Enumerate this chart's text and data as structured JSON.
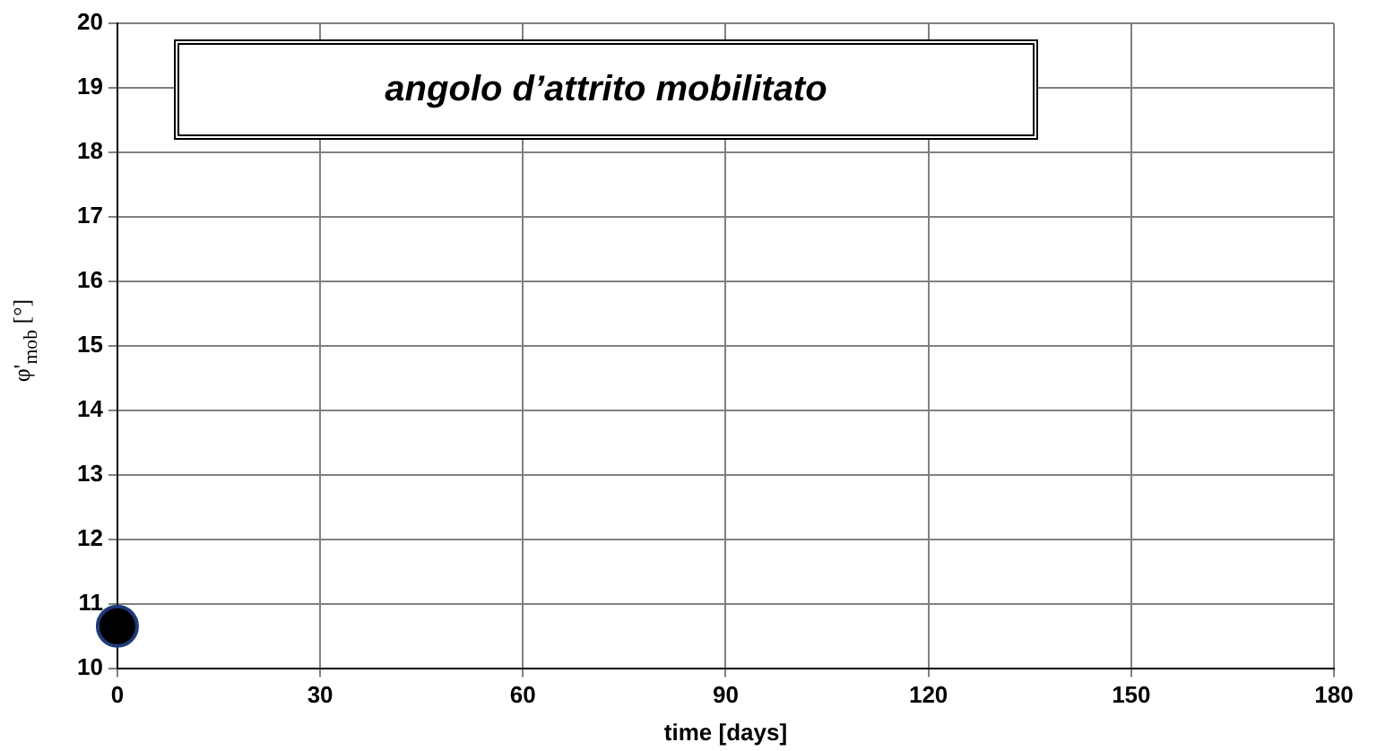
{
  "chart_data": {
    "type": "scatter",
    "xlabel": "time [days]",
    "ylabel": "φ'$_{mob}$ [°]",
    "annotations": [
      "angolo d’attrito mobilitato"
    ],
    "series": [
      {
        "color": "#000000",
        "x": [
          0
        ],
        "values": [
          10.65
        ]
      }
    ],
    "xlim": [
      0,
      180
    ],
    "xticks": [
      0,
      30,
      60,
      90,
      120,
      150,
      180
    ],
    "ylim": [
      10,
      20
    ],
    "yticks": [
      10,
      11,
      12,
      13,
      14,
      15,
      16,
      17,
      18,
      19,
      20
    ],
    "grid": true,
    "legend": false,
    "marker": "circle"
  }
}
